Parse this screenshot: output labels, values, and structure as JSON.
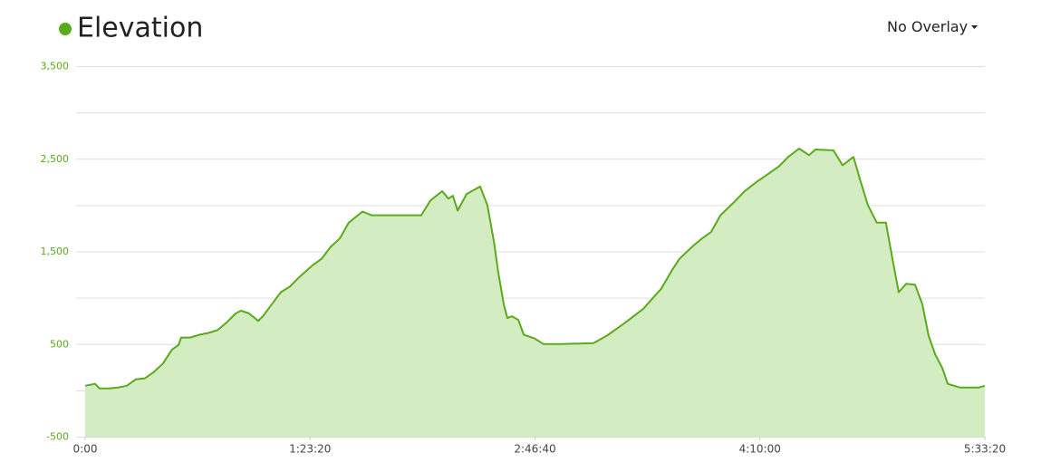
{
  "chart_data": {
    "type": "area",
    "title": "Elevation",
    "overlay_menu": "No Overlay",
    "color": "#5aaa1c",
    "fill": "#d4ecc1",
    "grid": true,
    "xlim": [
      0,
      20000
    ],
    "xticks": [
      {
        "value": 0,
        "label": "0:00"
      },
      {
        "value": 5000,
        "label": "1:23:20"
      },
      {
        "value": 10000,
        "label": "2:46:40"
      },
      {
        "value": 15000,
        "label": "4:10:00"
      },
      {
        "value": 20000,
        "label": "5:33:20"
      }
    ],
    "ylim": [
      -500,
      3500
    ],
    "yticks": [
      -500,
      500,
      {
        "value": 1500,
        "label": "1,500"
      },
      {
        "value": 2500,
        "label": "2,500"
      },
      {
        "value": 3500,
        "label": "3,500"
      }
    ],
    "minor_yticks": [
      0,
      1000,
      2000,
      3000
    ],
    "x": [
      0,
      220,
      320,
      520,
      725,
      925,
      1130,
      1330,
      1530,
      1730,
      1930,
      2075,
      2135,
      2335,
      2540,
      2740,
      2940,
      3140,
      3345,
      3465,
      3645,
      3845,
      3950,
      4150,
      4350,
      4550,
      4755,
      5055,
      5255,
      5460,
      5660,
      5860,
      6060,
      6165,
      6365,
      6565,
      6970,
      7470,
      7675,
      7935,
      8075,
      8175,
      8280,
      8480,
      8780,
      8940,
      9085,
      9185,
      9305,
      9385,
      9490,
      9630,
      9750,
      9990,
      10190,
      10595,
      11300,
      11600,
      12005,
      12405,
      12810,
      13050,
      13210,
      13515,
      13715,
      13915,
      14120,
      14420,
      14660,
      14925,
      15225,
      15425,
      15630,
      15870,
      16090,
      16235,
      16635,
      16835,
      17080,
      17240,
      17400,
      17600,
      17800,
      17945,
      18085,
      18250,
      18450,
      18610,
      18750,
      18895,
      19055,
      19175,
      19455,
      19860,
      20000
    ],
    "values": [
      50,
      70,
      20,
      20,
      30,
      50,
      120,
      130,
      200,
      290,
      440,
      490,
      570,
      570,
      600,
      620,
      650,
      730,
      830,
      860,
      830,
      750,
      800,
      930,
      1060,
      1120,
      1220,
      1350,
      1420,
      1550,
      1640,
      1810,
      1890,
      1930,
      1890,
      1890,
      1890,
      1890,
      2050,
      2150,
      2070,
      2100,
      1940,
      2120,
      2200,
      2000,
      1610,
      1270,
      930,
      780,
      800,
      760,
      600,
      560,
      500,
      500,
      510,
      590,
      730,
      880,
      1100,
      1300,
      1420,
      1560,
      1640,
      1710,
      1890,
      2030,
      2150,
      2250,
      2350,
      2420,
      2520,
      2610,
      2540,
      2600,
      2590,
      2430,
      2520,
      2250,
      2000,
      1810,
      1810,
      1420,
      1060,
      1150,
      1140,
      930,
      590,
      390,
      240,
      70,
      30,
      30,
      50
    ]
  }
}
